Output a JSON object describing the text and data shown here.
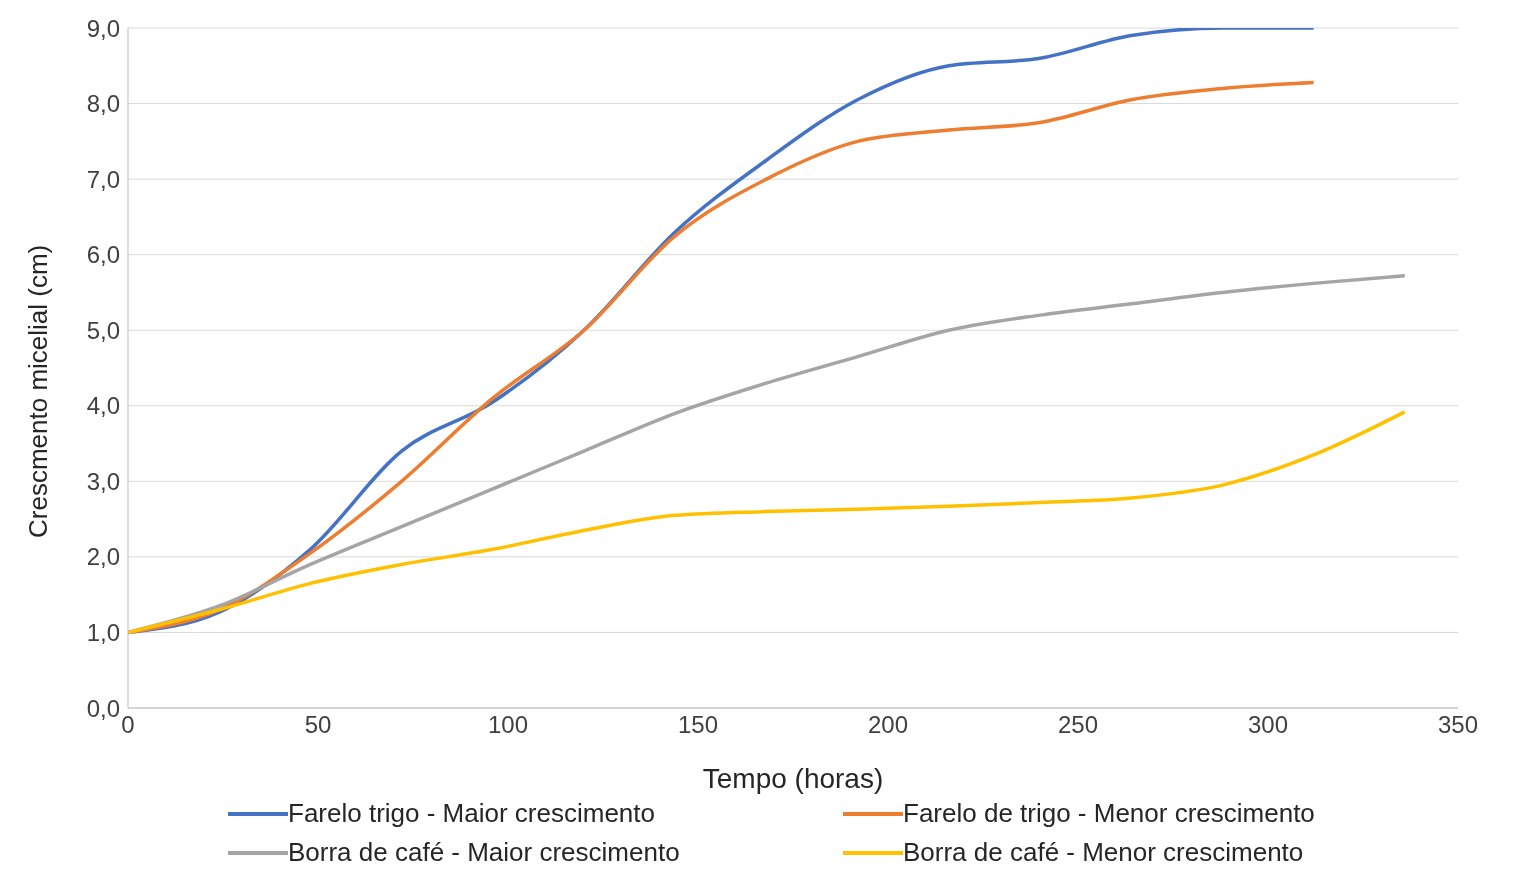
{
  "chart_data": {
    "type": "line",
    "xlabel": "Tempo (horas)",
    "ylabel": "Crescmento micelial (cm)",
    "xlim": [
      0,
      350
    ],
    "xticks": [
      0,
      50,
      100,
      150,
      200,
      250,
      300,
      350
    ],
    "ylim": [
      0,
      9
    ],
    "yticks": [
      {
        "value": 0,
        "label": "0,0"
      },
      {
        "value": 1,
        "label": "1,0"
      },
      {
        "value": 2,
        "label": "2,0"
      },
      {
        "value": 3,
        "label": "3,0"
      },
      {
        "value": 4,
        "label": "4,0"
      },
      {
        "value": 5,
        "label": "5,0"
      },
      {
        "value": 6,
        "label": "6,0"
      },
      {
        "value": 7,
        "label": "7,0"
      },
      {
        "value": 8,
        "label": "8,0"
      },
      {
        "value": 9,
        "label": "9,0"
      }
    ],
    "grid": "y",
    "legend": "bottom",
    "marker": "none",
    "line_style": "solid",
    "series": [
      {
        "name": "Farelo trigo - Maior crescimento",
        "color": "#4472c4",
        "x": [
          0,
          24,
          48,
          72,
          96,
          120,
          144,
          168,
          192,
          216,
          240,
          264,
          288,
          312
        ],
        "values": [
          1.0,
          1.27,
          2.1,
          3.4,
          4.05,
          5.0,
          6.3,
          7.25,
          8.05,
          8.5,
          8.6,
          8.9,
          9.0,
          9.0
        ]
      },
      {
        "name": "Farelo de trigo - Menor crescimento",
        "color": "#ed7d31",
        "x": [
          0,
          24,
          48,
          72,
          96,
          120,
          144,
          168,
          192,
          216,
          240,
          264,
          288,
          312
        ],
        "values": [
          1.0,
          1.3,
          2.05,
          3.0,
          4.1,
          5.0,
          6.25,
          7.0,
          7.5,
          7.65,
          7.75,
          8.05,
          8.2,
          8.28
        ]
      },
      {
        "name": "Borra de café - Maior crescimento",
        "color": "#a5a5a5",
        "x": [
          0,
          24,
          48,
          72,
          96,
          120,
          144,
          168,
          192,
          216,
          240,
          264,
          288,
          312,
          336
        ],
        "values": [
          1.0,
          1.35,
          1.9,
          2.4,
          2.9,
          3.4,
          3.9,
          4.3,
          4.65,
          5.0,
          5.2,
          5.35,
          5.5,
          5.62,
          5.72
        ]
      },
      {
        "name": "Borra de café - Menor crescimento",
        "color": "#ffc000",
        "x": [
          0,
          24,
          48,
          72,
          96,
          120,
          144,
          168,
          192,
          216,
          240,
          264,
          288,
          312,
          336
        ],
        "values": [
          1.0,
          1.3,
          1.65,
          1.9,
          2.1,
          2.35,
          2.55,
          2.6,
          2.63,
          2.67,
          2.72,
          2.78,
          2.95,
          3.35,
          3.92
        ]
      }
    ]
  }
}
